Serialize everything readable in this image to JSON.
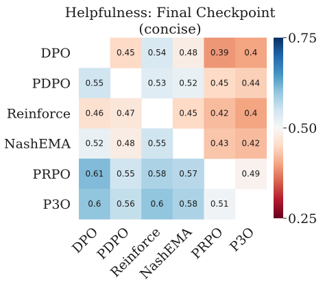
{
  "chart_data": {
    "type": "heatmap",
    "title": "Helpfulness: Final Checkpoint",
    "subtitle": "(concise)",
    "row_labels": [
      "DPO",
      "PDPO",
      "Reinforce",
      "NashEMA",
      "PRPO",
      "P3O"
    ],
    "col_labels": [
      "DPO",
      "PDPO",
      "Reinforce",
      "NashEMA",
      "PRPO",
      "P3O"
    ],
    "values": [
      [
        null,
        0.45,
        0.54,
        0.48,
        0.39,
        0.4
      ],
      [
        0.55,
        null,
        0.53,
        0.52,
        0.45,
        0.44
      ],
      [
        0.46,
        0.47,
        null,
        0.45,
        0.42,
        0.4
      ],
      [
        0.52,
        0.48,
        0.55,
        null,
        0.43,
        0.42
      ],
      [
        0.61,
        0.55,
        0.58,
        0.57,
        null,
        0.49
      ],
      [
        0.6,
        0.56,
        0.6,
        0.58,
        0.51,
        null
      ]
    ],
    "colorbar": {
      "min": 0.25,
      "max": 0.75,
      "ticks": [
        "0.25",
        "0.50",
        "0.75"
      ],
      "colormap": "RdBu",
      "low_color": "#67001f",
      "mid_color": "#f7f7f7",
      "high_color": "#053061"
    }
  }
}
